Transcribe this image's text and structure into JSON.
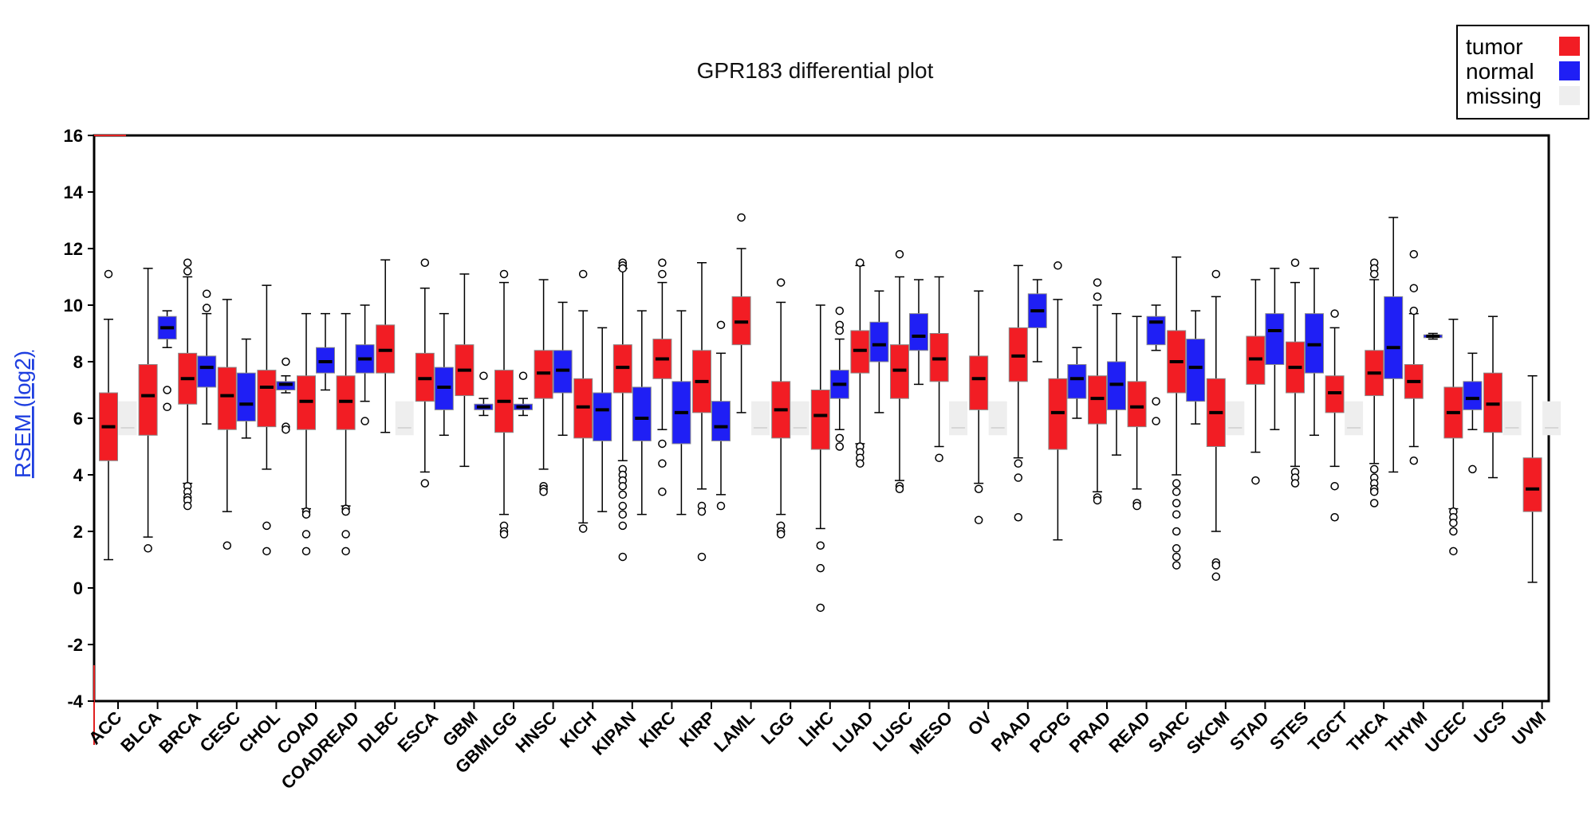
{
  "chart_data": {
    "type": "box",
    "title": "GPR183 differential plot",
    "ylabel": "RSEM (log2)",
    "xlabel": "",
    "ylim": [
      -4,
      16
    ],
    "yticks": [
      -4,
      -2,
      0,
      2,
      4,
      6,
      8,
      10,
      12,
      14,
      16
    ],
    "grid": false,
    "legend_position": "top-right",
    "legend": [
      {
        "name": "tumor",
        "color": "#f21d24"
      },
      {
        "name": "normal",
        "color": "#1f1ff5"
      },
      {
        "name": "missing",
        "color": "#eeeeee"
      }
    ],
    "categories": [
      {
        "name": "ACC",
        "tumor": {
          "whislo": 1.0,
          "q1": 4.5,
          "med": 5.7,
          "q3": 6.9,
          "whishi": 9.5,
          "fliers": [
            11.1
          ]
        },
        "normal": null
      },
      {
        "name": "BLCA",
        "tumor": {
          "whislo": 1.8,
          "q1": 5.4,
          "med": 6.8,
          "q3": 7.9,
          "whishi": 11.3,
          "fliers": [
            1.4
          ]
        },
        "normal": {
          "whislo": 8.5,
          "q1": 8.8,
          "med": 9.2,
          "q3": 9.6,
          "whishi": 9.8,
          "fliers": [
            7.0,
            6.4
          ]
        }
      },
      {
        "name": "BRCA",
        "tumor": {
          "whislo": 3.7,
          "q1": 6.5,
          "med": 7.4,
          "q3": 8.3,
          "whishi": 11.0,
          "fliers": [
            11.5,
            11.2,
            3.6,
            3.4,
            3.2,
            3.1,
            2.9
          ]
        },
        "normal": {
          "whislo": 5.8,
          "q1": 7.1,
          "med": 7.8,
          "q3": 8.2,
          "whishi": 9.7,
          "fliers": [
            10.4,
            9.9
          ]
        }
      },
      {
        "name": "CESC",
        "tumor": {
          "whislo": 2.7,
          "q1": 5.6,
          "med": 6.8,
          "q3": 7.8,
          "whishi": 10.2,
          "fliers": [
            1.5
          ]
        },
        "normal": {
          "whislo": 5.3,
          "q1": 5.9,
          "med": 6.5,
          "q3": 7.6,
          "whishi": 8.8,
          "fliers": []
        }
      },
      {
        "name": "CHOL",
        "tumor": {
          "whislo": 4.2,
          "q1": 5.7,
          "med": 7.1,
          "q3": 7.7,
          "whishi": 10.7,
          "fliers": [
            2.2,
            1.3
          ]
        },
        "normal": {
          "whislo": 6.9,
          "q1": 7.0,
          "med": 7.2,
          "q3": 7.3,
          "whishi": 7.5,
          "fliers": [
            8.0,
            5.7,
            5.6
          ]
        }
      },
      {
        "name": "COAD",
        "tumor": {
          "whislo": 2.8,
          "q1": 5.6,
          "med": 6.6,
          "q3": 7.5,
          "whishi": 9.7,
          "fliers": [
            2.7,
            2.6,
            1.9,
            1.3
          ]
        },
        "normal": {
          "whislo": 7.0,
          "q1": 7.6,
          "med": 8.0,
          "q3": 8.5,
          "whishi": 9.7,
          "fliers": []
        }
      },
      {
        "name": "COADREAD",
        "tumor": {
          "whislo": 2.9,
          "q1": 5.6,
          "med": 6.6,
          "q3": 7.5,
          "whishi": 9.7,
          "fliers": [
            2.8,
            2.7,
            1.9,
            1.3
          ]
        },
        "normal": {
          "whislo": 6.6,
          "q1": 7.6,
          "med": 8.1,
          "q3": 8.6,
          "whishi": 10.0,
          "fliers": [
            5.9
          ]
        }
      },
      {
        "name": "DLBC",
        "tumor": {
          "whislo": 5.5,
          "q1": 7.6,
          "med": 8.4,
          "q3": 9.3,
          "whishi": 11.6,
          "fliers": []
        },
        "normal": null
      },
      {
        "name": "ESCA",
        "tumor": {
          "whislo": 4.1,
          "q1": 6.6,
          "med": 7.4,
          "q3": 8.3,
          "whishi": 10.6,
          "fliers": [
            11.5,
            3.7
          ]
        },
        "normal": {
          "whislo": 5.4,
          "q1": 6.3,
          "med": 7.1,
          "q3": 7.8,
          "whishi": 9.7,
          "fliers": []
        }
      },
      {
        "name": "GBM",
        "tumor": {
          "whislo": 4.3,
          "q1": 6.8,
          "med": 7.7,
          "q3": 8.6,
          "whishi": 11.1,
          "fliers": []
        },
        "normal": {
          "whislo": 6.1,
          "q1": 6.3,
          "med": 6.4,
          "q3": 6.5,
          "whishi": 6.7,
          "fliers": [
            7.5
          ]
        }
      },
      {
        "name": "GBMLGG",
        "tumor": {
          "whislo": 2.6,
          "q1": 5.5,
          "med": 6.6,
          "q3": 7.7,
          "whishi": 10.8,
          "fliers": [
            11.1,
            2.2,
            2.0,
            1.9
          ]
        },
        "normal": {
          "whislo": 6.1,
          "q1": 6.3,
          "med": 6.4,
          "q3": 6.5,
          "whishi": 6.7,
          "fliers": [
            7.5
          ]
        }
      },
      {
        "name": "HNSC",
        "tumor": {
          "whislo": 4.2,
          "q1": 6.7,
          "med": 7.6,
          "q3": 8.4,
          "whishi": 10.9,
          "fliers": [
            3.6,
            3.5,
            3.4
          ]
        },
        "normal": {
          "whislo": 5.4,
          "q1": 6.9,
          "med": 7.7,
          "q3": 8.4,
          "whishi": 10.1,
          "fliers": []
        }
      },
      {
        "name": "KICH",
        "tumor": {
          "whislo": 2.3,
          "q1": 5.3,
          "med": 6.4,
          "q3": 7.4,
          "whishi": 9.8,
          "fliers": [
            11.1,
            2.1
          ]
        },
        "normal": {
          "whislo": 2.7,
          "q1": 5.2,
          "med": 6.3,
          "q3": 6.9,
          "whishi": 9.2,
          "fliers": []
        }
      },
      {
        "name": "KIPAN",
        "tumor": {
          "whislo": 4.5,
          "q1": 6.9,
          "med": 7.8,
          "q3": 8.6,
          "whishi": 11.3,
          "fliers": [
            11.5,
            11.4,
            11.3,
            4.2,
            4.0,
            3.8,
            3.6,
            3.3,
            2.9,
            2.6,
            2.2,
            1.1
          ]
        },
        "normal": {
          "whislo": 2.6,
          "q1": 5.2,
          "med": 6.0,
          "q3": 7.1,
          "whishi": 9.8,
          "fliers": []
        }
      },
      {
        "name": "KIRC",
        "tumor": {
          "whislo": 5.6,
          "q1": 7.4,
          "med": 8.1,
          "q3": 8.8,
          "whishi": 10.8,
          "fliers": [
            11.5,
            11.1,
            5.1,
            4.4,
            3.4
          ]
        },
        "normal": {
          "whislo": 2.6,
          "q1": 5.1,
          "med": 6.2,
          "q3": 7.3,
          "whishi": 9.8,
          "fliers": []
        }
      },
      {
        "name": "KIRP",
        "tumor": {
          "whislo": 3.5,
          "q1": 6.2,
          "med": 7.3,
          "q3": 8.4,
          "whishi": 11.5,
          "fliers": [
            2.9,
            2.7,
            1.1
          ]
        },
        "normal": {
          "whislo": 3.3,
          "q1": 5.2,
          "med": 5.7,
          "q3": 6.6,
          "whishi": 8.3,
          "fliers": [
            9.3,
            2.9
          ]
        }
      },
      {
        "name": "LAML",
        "tumor": {
          "whislo": 6.2,
          "q1": 8.6,
          "med": 9.4,
          "q3": 10.3,
          "whishi": 12.0,
          "fliers": [
            13.1
          ]
        },
        "normal": null
      },
      {
        "name": "LGG",
        "tumor": {
          "whislo": 2.6,
          "q1": 5.3,
          "med": 6.3,
          "q3": 7.3,
          "whishi": 10.1,
          "fliers": [
            10.8,
            2.2,
            2.0,
            1.9
          ]
        },
        "normal": null
      },
      {
        "name": "LIHC",
        "tumor": {
          "whislo": 2.1,
          "q1": 4.9,
          "med": 6.1,
          "q3": 7.0,
          "whishi": 10.0,
          "fliers": [
            1.5,
            0.7,
            -0.7
          ]
        },
        "normal": {
          "whislo": 5.6,
          "q1": 6.7,
          "med": 7.2,
          "q3": 7.7,
          "whishi": 8.8,
          "fliers": [
            9.8,
            9.3,
            9.1,
            5.3,
            5.0
          ]
        }
      },
      {
        "name": "LUAD",
        "tumor": {
          "whislo": 5.1,
          "q1": 7.6,
          "med": 8.4,
          "q3": 9.1,
          "whishi": 11.4,
          "fliers": [
            11.5,
            5.0,
            4.8,
            4.6,
            4.4
          ]
        },
        "normal": {
          "whislo": 6.2,
          "q1": 8.0,
          "med": 8.6,
          "q3": 9.4,
          "whishi": 10.5,
          "fliers": []
        }
      },
      {
        "name": "LUSC",
        "tumor": {
          "whislo": 3.8,
          "q1": 6.7,
          "med": 7.7,
          "q3": 8.6,
          "whishi": 11.0,
          "fliers": [
            11.8,
            3.6,
            3.5
          ]
        },
        "normal": {
          "whislo": 7.2,
          "q1": 8.4,
          "med": 8.9,
          "q3": 9.7,
          "whishi": 10.9,
          "fliers": []
        }
      },
      {
        "name": "MESO",
        "tumor": {
          "whislo": 5.0,
          "q1": 7.3,
          "med": 8.1,
          "q3": 9.0,
          "whishi": 11.0,
          "fliers": [
            4.6
          ]
        },
        "normal": null
      },
      {
        "name": "OV",
        "tumor": {
          "whislo": 3.7,
          "q1": 6.3,
          "med": 7.4,
          "q3": 8.2,
          "whishi": 10.5,
          "fliers": [
            3.5,
            2.4
          ]
        },
        "normal": null
      },
      {
        "name": "PAAD",
        "tumor": {
          "whislo": 4.6,
          "q1": 7.3,
          "med": 8.2,
          "q3": 9.2,
          "whishi": 11.4,
          "fliers": [
            4.4,
            3.9,
            2.5
          ]
        },
        "normal": {
          "whislo": 8.0,
          "q1": 9.2,
          "med": 9.8,
          "q3": 10.4,
          "whishi": 10.9,
          "fliers": []
        }
      },
      {
        "name": "PCPG",
        "tumor": {
          "whislo": 1.7,
          "q1": 4.9,
          "med": 6.2,
          "q3": 7.4,
          "whishi": 10.2,
          "fliers": [
            11.4
          ]
        },
        "normal": {
          "whislo": 6.0,
          "q1": 6.7,
          "med": 7.4,
          "q3": 7.9,
          "whishi": 8.5,
          "fliers": []
        }
      },
      {
        "name": "PRAD",
        "tumor": {
          "whislo": 3.4,
          "q1": 5.8,
          "med": 6.7,
          "q3": 7.5,
          "whishi": 10.0,
          "fliers": [
            10.8,
            10.3,
            3.2,
            3.1
          ]
        },
        "normal": {
          "whislo": 4.7,
          "q1": 6.3,
          "med": 7.2,
          "q3": 8.0,
          "whishi": 9.7,
          "fliers": []
        }
      },
      {
        "name": "READ",
        "tumor": {
          "whislo": 3.5,
          "q1": 5.7,
          "med": 6.4,
          "q3": 7.3,
          "whishi": 9.6,
          "fliers": [
            3.0,
            2.9
          ]
        },
        "normal": {
          "whislo": 8.4,
          "q1": 8.6,
          "med": 9.4,
          "q3": 9.6,
          "whishi": 10.0,
          "fliers": [
            6.6,
            5.9
          ]
        }
      },
      {
        "name": "SARC",
        "tumor": {
          "whislo": 4.0,
          "q1": 6.9,
          "med": 8.0,
          "q3": 9.1,
          "whishi": 11.7,
          "fliers": [
            3.7,
            3.4,
            3.0,
            2.6,
            2.0,
            1.4,
            1.1,
            0.8
          ]
        },
        "normal": {
          "whislo": 5.8,
          "q1": 6.6,
          "med": 7.8,
          "q3": 8.8,
          "whishi": 9.8,
          "fliers": []
        }
      },
      {
        "name": "SKCM",
        "tumor": {
          "whislo": 2.0,
          "q1": 5.0,
          "med": 6.2,
          "q3": 7.4,
          "whishi": 10.3,
          "fliers": [
            11.1,
            0.9,
            0.8,
            0.4
          ]
        },
        "normal": null
      },
      {
        "name": "STAD",
        "tumor": {
          "whislo": 4.8,
          "q1": 7.2,
          "med": 8.1,
          "q3": 8.9,
          "whishi": 10.9,
          "fliers": [
            3.8
          ]
        },
        "normal": {
          "whislo": 5.6,
          "q1": 7.9,
          "med": 9.1,
          "q3": 9.7,
          "whishi": 11.3,
          "fliers": []
        }
      },
      {
        "name": "STES",
        "tumor": {
          "whislo": 4.3,
          "q1": 6.9,
          "med": 7.8,
          "q3": 8.7,
          "whishi": 10.8,
          "fliers": [
            11.5,
            4.1,
            3.9,
            3.7
          ]
        },
        "normal": {
          "whislo": 5.4,
          "q1": 7.6,
          "med": 8.6,
          "q3": 9.7,
          "whishi": 11.3,
          "fliers": []
        }
      },
      {
        "name": "TGCT",
        "tumor": {
          "whislo": 4.3,
          "q1": 6.2,
          "med": 6.9,
          "q3": 7.5,
          "whishi": 9.2,
          "fliers": [
            9.7,
            3.6,
            2.5
          ]
        },
        "normal": null
      },
      {
        "name": "THCA",
        "tumor": {
          "whislo": 4.4,
          "q1": 6.8,
          "med": 7.6,
          "q3": 8.4,
          "whishi": 10.9,
          "fliers": [
            11.5,
            11.3,
            11.1,
            4.2,
            3.9,
            3.7,
            3.5,
            3.4,
            3.0
          ]
        },
        "normal": {
          "whislo": 4.1,
          "q1": 7.4,
          "med": 8.5,
          "q3": 10.3,
          "whishi": 13.1,
          "fliers": []
        }
      },
      {
        "name": "THYM",
        "tumor": {
          "whislo": 5.0,
          "q1": 6.7,
          "med": 7.3,
          "q3": 7.9,
          "whishi": 9.7,
          "fliers": [
            11.8,
            10.6,
            9.8,
            4.5
          ]
        },
        "normal": {
          "whislo": 8.8,
          "q1": 8.85,
          "med": 8.9,
          "q3": 8.95,
          "whishi": 9.0,
          "fliers": []
        }
      },
      {
        "name": "UCEC",
        "tumor": {
          "whislo": 2.8,
          "q1": 5.3,
          "med": 6.2,
          "q3": 7.1,
          "whishi": 9.5,
          "fliers": [
            2.7,
            2.5,
            2.3,
            2.0,
            1.3
          ]
        },
        "normal": {
          "whislo": 5.6,
          "q1": 6.3,
          "med": 6.7,
          "q3": 7.3,
          "whishi": 8.3,
          "fliers": [
            4.2
          ]
        }
      },
      {
        "name": "UCS",
        "tumor": {
          "whislo": 3.9,
          "q1": 5.5,
          "med": 6.5,
          "q3": 7.6,
          "whishi": 9.6,
          "fliers": []
        },
        "normal": null
      },
      {
        "name": "UVM",
        "tumor": {
          "whislo": 0.2,
          "q1": 2.7,
          "med": 3.5,
          "q3": 4.6,
          "whishi": 7.5,
          "fliers": []
        },
        "normal": null
      }
    ],
    "missing_band": {
      "low": 5.4,
      "high": 6.6
    }
  }
}
